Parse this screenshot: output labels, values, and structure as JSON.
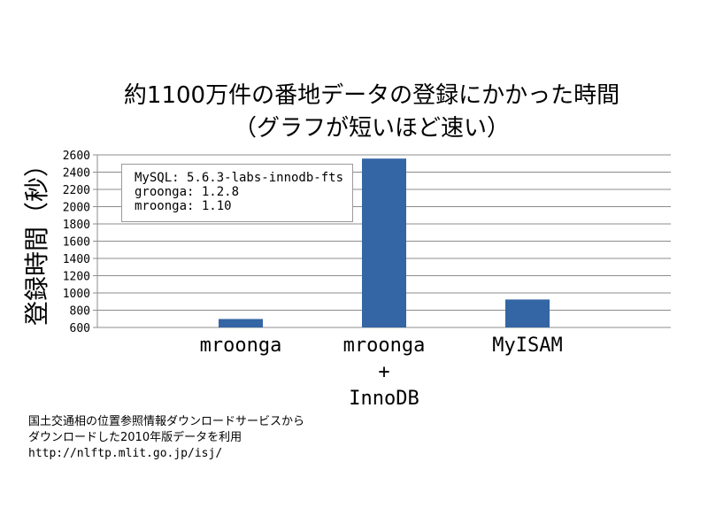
{
  "chart_data": {
    "type": "bar",
    "title": "約1100万件の番地データの登録にかかった時間",
    "subtitle": "（グラフが短いほど速い）",
    "ylabel": "登録時間（秒）",
    "xlabel": "",
    "categories": [
      [
        "mroonga"
      ],
      [
        "mroonga",
        "+",
        "InnoDB"
      ],
      [
        "MyISAM"
      ]
    ],
    "values": [
      698,
      2557,
      924
    ],
    "ylim": [
      600,
      2600
    ],
    "yticks": [
      600,
      800,
      1000,
      1200,
      1400,
      1600,
      1800,
      2000,
      2200,
      2400,
      2600
    ],
    "grid": true,
    "bar_color": "#3465a4",
    "legend": {
      "placement": "top-left",
      "lines": [
        "MySQL: 5.6.3-labs-innodb-fts",
        "groonga: 1.2.8",
        "mroonga: 1.10"
      ]
    }
  },
  "footer": {
    "lines": [
      "国土交通相の位置参照情報ダウンロードサービスから",
      "ダウンロードした2010年版データを利用"
    ],
    "url": "http://nlftp.mlit.go.jp/isj/"
  }
}
